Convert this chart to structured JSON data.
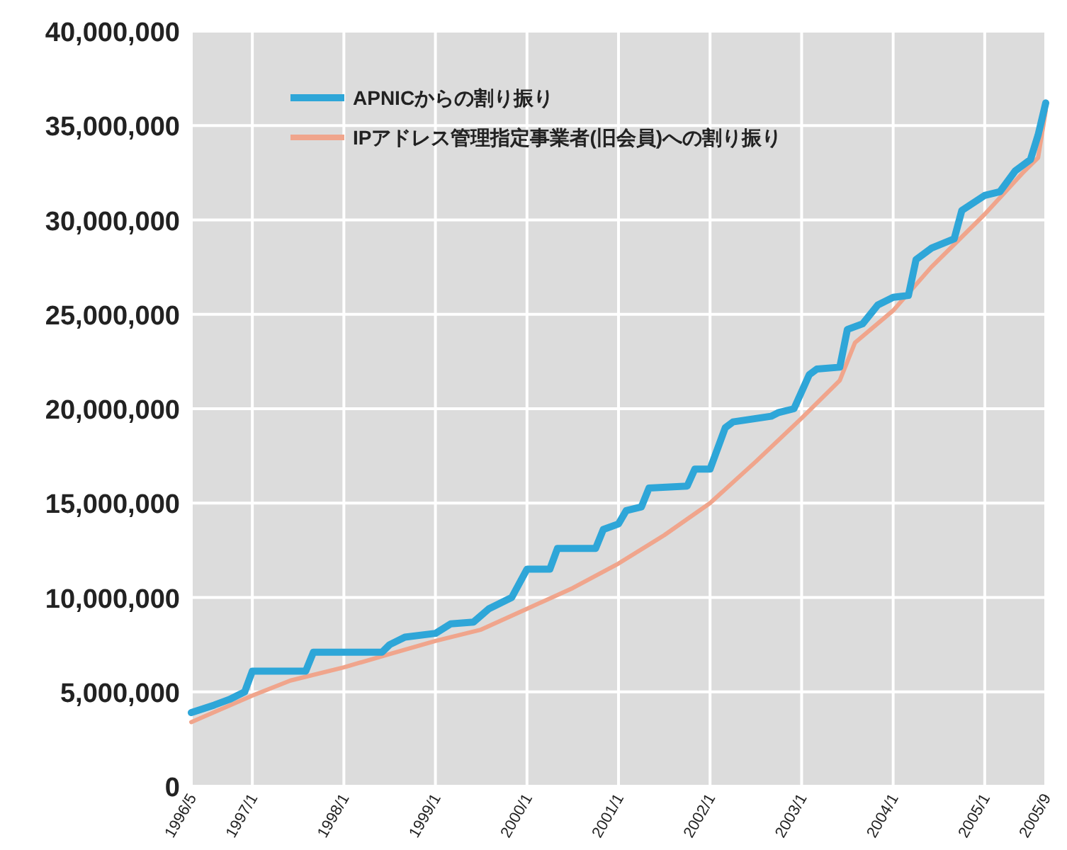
{
  "chart_data": {
    "type": "line",
    "grid": true,
    "legend": "top left",
    "line_style": "solid",
    "xlim": [
      "1996-05",
      "2005-09"
    ],
    "xticks": [
      {
        "value": "1996-05",
        "label": "1996/5"
      },
      {
        "value": "1997-01",
        "label": "1997/1"
      },
      {
        "value": "1998-01",
        "label": "1998/1"
      },
      {
        "value": "1999-01",
        "label": "1999/1"
      },
      {
        "value": "2000-01",
        "label": "2000/1"
      },
      {
        "value": "2001-01",
        "label": "2001/1"
      },
      {
        "value": "2002-01",
        "label": "2002/1"
      },
      {
        "value": "2003-01",
        "label": "2003/1"
      },
      {
        "value": "2004-01",
        "label": "2004/1"
      },
      {
        "value": "2005-01",
        "label": "2005/1"
      },
      {
        "value": "2005-09",
        "label": "2005/9"
      }
    ],
    "ylim": [
      0,
      40000000
    ],
    "yticks": [
      {
        "value": 0,
        "label": "0"
      },
      {
        "value": 5000000,
        "label": "5,000,000"
      },
      {
        "value": 10000000,
        "label": "10,000,000"
      },
      {
        "value": 15000000,
        "label": "15,000,000"
      },
      {
        "value": 20000000,
        "label": "20,000,000"
      },
      {
        "value": 25000000,
        "label": "25,000,000"
      },
      {
        "value": 30000000,
        "label": "30,000,000"
      },
      {
        "value": 35000000,
        "label": "35,000,000"
      },
      {
        "value": 40000000,
        "label": "40,000,000"
      }
    ],
    "series": [
      {
        "name": "APNICからの割り振り",
        "color": "#2ea6d8",
        "x": [
          "1996-05",
          "1996-08",
          "1996-10",
          "1996-12",
          "1997-01",
          "1997-08",
          "1997-09",
          "1998-06",
          "1998-07",
          "1998-09",
          "1999-01",
          "1999-03",
          "1999-06",
          "1999-08",
          "1999-11",
          "2000-01",
          "2000-04",
          "2000-05",
          "2000-10",
          "2000-11",
          "2001-01",
          "2001-02",
          "2001-04",
          "2001-05",
          "2001-10",
          "2001-11",
          "2002-01",
          "2002-03",
          "2002-04",
          "2002-09",
          "2002-10",
          "2002-12",
          "2003-02",
          "2003-03",
          "2003-06",
          "2003-07",
          "2003-09",
          "2003-11",
          "2004-01",
          "2004-03",
          "2004-04",
          "2004-06",
          "2004-09",
          "2004-10",
          "2005-01",
          "2005-03",
          "2005-05",
          "2005-07",
          "2005-08",
          "2005-09"
        ],
        "values": [
          3900000,
          4300000,
          4600000,
          5000000,
          6100000,
          6100000,
          7100000,
          7100000,
          7500000,
          7900000,
          8100000,
          8600000,
          8700000,
          9400000,
          10000000,
          11500000,
          11500000,
          12600000,
          12600000,
          13600000,
          13900000,
          14600000,
          14800000,
          15800000,
          15900000,
          16800000,
          16800000,
          19000000,
          19300000,
          19600000,
          19800000,
          20000000,
          21800000,
          22100000,
          22200000,
          24200000,
          24500000,
          25500000,
          25900000,
          26000000,
          27900000,
          28500000,
          29000000,
          30500000,
          31300000,
          31500000,
          32600000,
          33200000,
          34500000,
          36200000
        ]
      },
      {
        "name": "IPアドレス管理指定事業者(旧会員)への割り振り",
        "color": "#f0a58c",
        "x": [
          "1996-05",
          "1997-01",
          "1997-06",
          "1998-01",
          "1998-07",
          "1999-01",
          "1999-07",
          "2000-01",
          "2000-07",
          "2001-01",
          "2001-07",
          "2002-01",
          "2002-07",
          "2003-01",
          "2003-06",
          "2003-08",
          "2004-01",
          "2004-06",
          "2005-01",
          "2005-06",
          "2005-08",
          "2005-09"
        ],
        "values": [
          3400000,
          4800000,
          5600000,
          6300000,
          7000000,
          7700000,
          8300000,
          9400000,
          10500000,
          11800000,
          13300000,
          15000000,
          17200000,
          19500000,
          21500000,
          23500000,
          25200000,
          27500000,
          30300000,
          32500000,
          33300000,
          35800000
        ]
      }
    ]
  }
}
